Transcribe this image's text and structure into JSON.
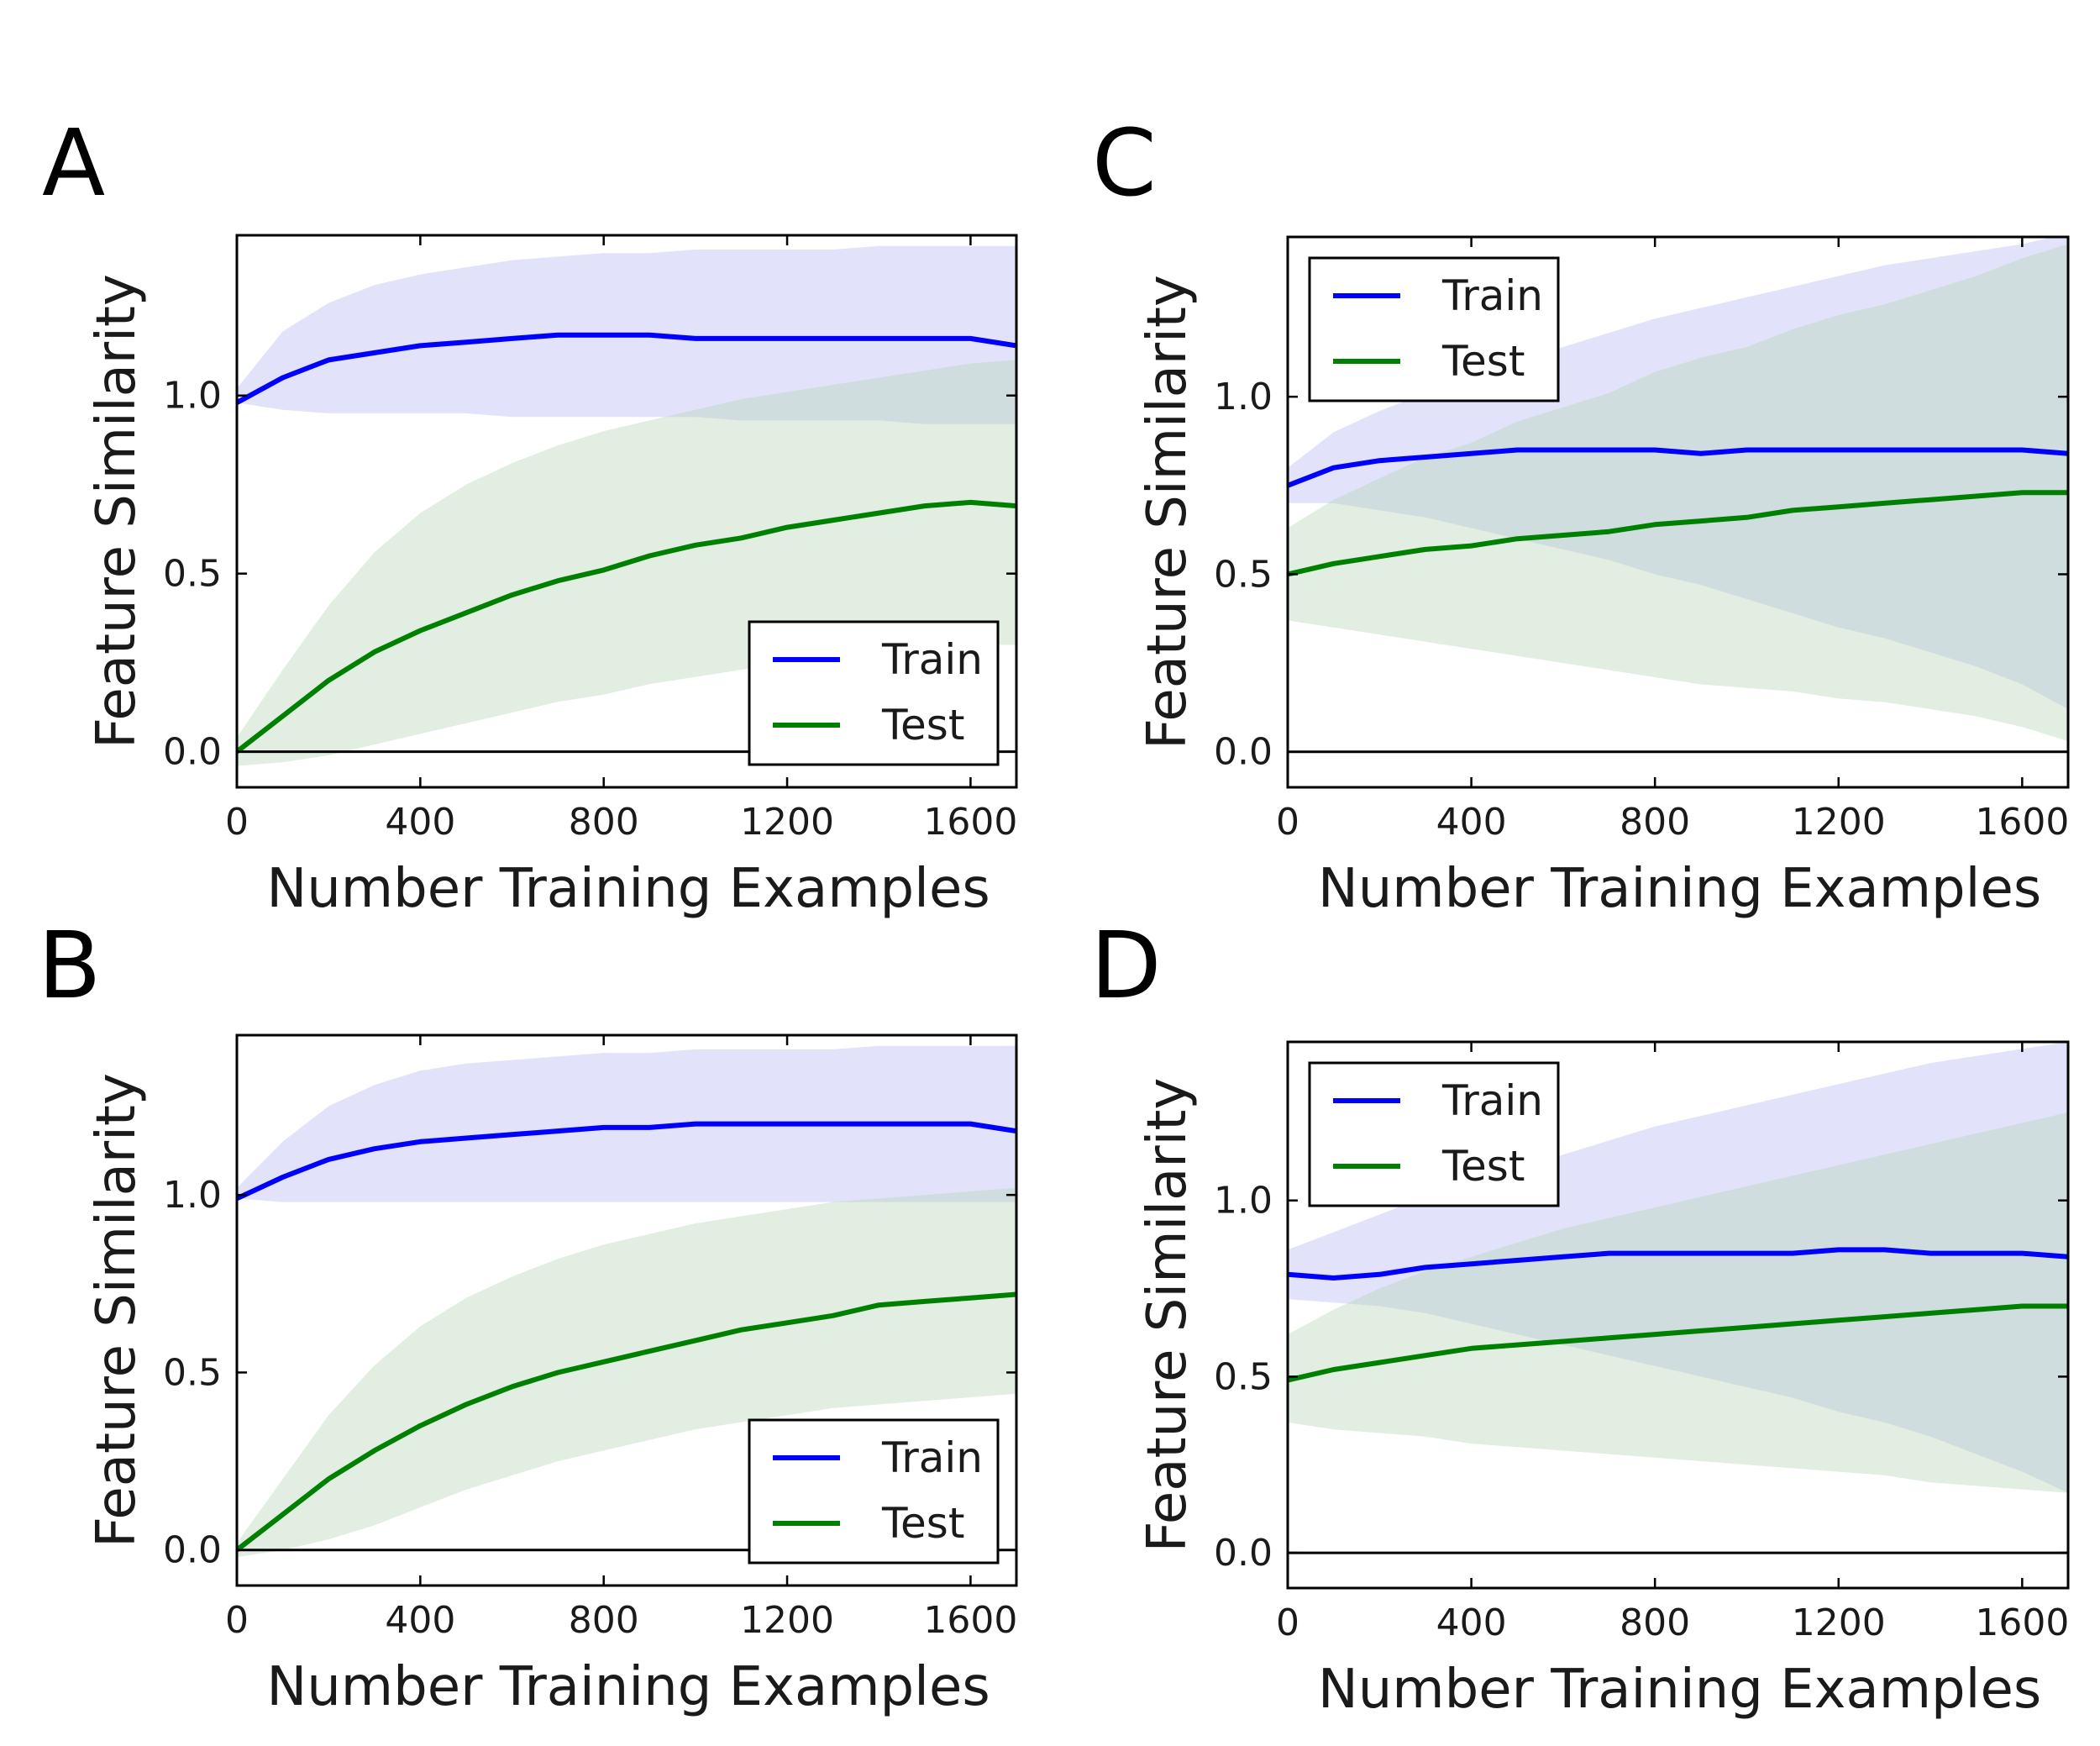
{
  "colors": {
    "train": "#0000ff",
    "test": "#008000",
    "train_band": "#b3b3f5",
    "test_band": "#b7d7b7"
  },
  "chart_data": [
    {
      "panel": "A",
      "type": "line",
      "xlabel": "Number Training Examples",
      "ylabel": "Feature Similarity",
      "xlim": [
        0,
        1700
      ],
      "ylim": [
        -0.1,
        1.45
      ],
      "xticks": [
        0,
        400,
        800,
        1200,
        1600
      ],
      "yticks": [
        0.0,
        0.5,
        1.0
      ],
      "xtick_labels": [
        "0",
        "400",
        "800",
        "1200",
        "1600"
      ],
      "ytick_labels": [
        "0.0",
        "0.5",
        "1.0"
      ],
      "legend": {
        "position": "lower-right",
        "entries": [
          "Train",
          "Test"
        ]
      },
      "x": [
        0,
        100,
        200,
        300,
        400,
        500,
        600,
        700,
        800,
        900,
        1000,
        1100,
        1200,
        1300,
        1400,
        1500,
        1600,
        1700
      ],
      "series": [
        {
          "name": "Train",
          "mean": [
            0.98,
            1.05,
            1.1,
            1.12,
            1.14,
            1.15,
            1.16,
            1.17,
            1.17,
            1.17,
            1.16,
            1.16,
            1.16,
            1.16,
            1.16,
            1.16,
            1.16,
            1.14
          ],
          "lower": [
            0.98,
            0.96,
            0.95,
            0.95,
            0.95,
            0.95,
            0.94,
            0.94,
            0.94,
            0.94,
            0.94,
            0.93,
            0.93,
            0.93,
            0.93,
            0.92,
            0.92,
            0.92
          ],
          "upper": [
            1.02,
            1.18,
            1.26,
            1.31,
            1.34,
            1.36,
            1.38,
            1.39,
            1.4,
            1.4,
            1.41,
            1.41,
            1.41,
            1.41,
            1.42,
            1.42,
            1.42,
            1.42
          ]
        },
        {
          "name": "Test",
          "mean": [
            0.0,
            0.1,
            0.2,
            0.28,
            0.34,
            0.39,
            0.44,
            0.48,
            0.51,
            0.55,
            0.58,
            0.6,
            0.63,
            0.65,
            0.67,
            0.69,
            0.7,
            0.69
          ],
          "lower": [
            -0.04,
            -0.03,
            -0.01,
            0.02,
            0.05,
            0.08,
            0.11,
            0.14,
            0.16,
            0.19,
            0.21,
            0.23,
            0.25,
            0.26,
            0.28,
            0.29,
            0.3,
            0.3
          ],
          "upper": [
            0.04,
            0.23,
            0.41,
            0.56,
            0.67,
            0.75,
            0.81,
            0.86,
            0.9,
            0.93,
            0.96,
            0.99,
            1.01,
            1.03,
            1.05,
            1.07,
            1.09,
            1.1
          ]
        }
      ]
    },
    {
      "panel": "B",
      "type": "line",
      "xlabel": "Number Training Examples",
      "ylabel": "Feature Similarity",
      "xlim": [
        0,
        1700
      ],
      "ylim": [
        -0.1,
        1.45
      ],
      "xticks": [
        0,
        400,
        800,
        1200,
        1600
      ],
      "yticks": [
        0.0,
        0.5,
        1.0
      ],
      "xtick_labels": [
        "0",
        "400",
        "800",
        "1200",
        "1600"
      ],
      "ytick_labels": [
        "0.0",
        "0.5",
        "1.0"
      ],
      "legend": {
        "position": "lower-right",
        "entries": [
          "Train",
          "Test"
        ]
      },
      "x": [
        0,
        100,
        200,
        300,
        400,
        500,
        600,
        700,
        800,
        900,
        1000,
        1100,
        1200,
        1300,
        1400,
        1500,
        1600,
        1700
      ],
      "series": [
        {
          "name": "Train",
          "mean": [
            0.99,
            1.05,
            1.1,
            1.13,
            1.15,
            1.16,
            1.17,
            1.18,
            1.19,
            1.19,
            1.2,
            1.2,
            1.2,
            1.2,
            1.2,
            1.2,
            1.2,
            1.18
          ],
          "lower": [
            0.99,
            0.98,
            0.98,
            0.98,
            0.98,
            0.98,
            0.98,
            0.98,
            0.98,
            0.98,
            0.98,
            0.98,
            0.98,
            0.98,
            0.98,
            0.98,
            0.98,
            0.98
          ],
          "upper": [
            1.02,
            1.15,
            1.25,
            1.31,
            1.35,
            1.37,
            1.38,
            1.39,
            1.4,
            1.4,
            1.41,
            1.41,
            1.41,
            1.41,
            1.42,
            1.42,
            1.42,
            1.42
          ]
        },
        {
          "name": "Test",
          "mean": [
            0.0,
            0.1,
            0.2,
            0.28,
            0.35,
            0.41,
            0.46,
            0.5,
            0.53,
            0.56,
            0.59,
            0.62,
            0.64,
            0.66,
            0.69,
            0.7,
            0.71,
            0.72
          ],
          "lower": [
            -0.02,
            0.0,
            0.03,
            0.07,
            0.12,
            0.17,
            0.21,
            0.25,
            0.28,
            0.31,
            0.34,
            0.36,
            0.38,
            0.4,
            0.41,
            0.42,
            0.43,
            0.44
          ],
          "upper": [
            0.02,
            0.2,
            0.38,
            0.52,
            0.63,
            0.71,
            0.77,
            0.82,
            0.86,
            0.89,
            0.92,
            0.94,
            0.96,
            0.98,
            0.99,
            1.0,
            1.01,
            1.02
          ]
        }
      ]
    },
    {
      "panel": "C",
      "type": "line",
      "xlabel": "Number Training Examples",
      "ylabel": "Feature Similarity",
      "xlim": [
        0,
        1700
      ],
      "ylim": [
        -0.1,
        1.45
      ],
      "xticks": [
        0,
        400,
        800,
        1200,
        1600
      ],
      "yticks": [
        0.0,
        0.5,
        1.0
      ],
      "xtick_labels": [
        "0",
        "400",
        "800",
        "1200",
        "1600"
      ],
      "ytick_labels": [
        "0.0",
        "0.5",
        "1.0"
      ],
      "legend": {
        "position": "upper-left",
        "entries": [
          "Train",
          "Test"
        ]
      },
      "x": [
        0,
        100,
        200,
        300,
        400,
        500,
        600,
        700,
        800,
        900,
        1000,
        1100,
        1200,
        1300,
        1400,
        1500,
        1600,
        1700
      ],
      "series": [
        {
          "name": "Train",
          "mean": [
            0.75,
            0.8,
            0.82,
            0.83,
            0.84,
            0.85,
            0.85,
            0.85,
            0.85,
            0.84,
            0.85,
            0.85,
            0.85,
            0.85,
            0.85,
            0.85,
            0.85,
            0.84
          ],
          "lower": [
            0.7,
            0.7,
            0.68,
            0.66,
            0.63,
            0.6,
            0.57,
            0.54,
            0.5,
            0.47,
            0.43,
            0.39,
            0.35,
            0.32,
            0.28,
            0.24,
            0.19,
            0.12
          ],
          "upper": [
            0.8,
            0.9,
            0.96,
            1.01,
            1.06,
            1.1,
            1.14,
            1.18,
            1.22,
            1.25,
            1.28,
            1.31,
            1.34,
            1.37,
            1.39,
            1.41,
            1.43,
            1.46
          ]
        },
        {
          "name": "Test",
          "mean": [
            0.5,
            0.53,
            0.55,
            0.57,
            0.58,
            0.6,
            0.61,
            0.62,
            0.64,
            0.65,
            0.66,
            0.68,
            0.69,
            0.7,
            0.71,
            0.72,
            0.73,
            0.73
          ],
          "lower": [
            0.37,
            0.35,
            0.33,
            0.31,
            0.29,
            0.27,
            0.25,
            0.23,
            0.21,
            0.19,
            0.18,
            0.17,
            0.15,
            0.14,
            0.12,
            0.1,
            0.07,
            0.03
          ],
          "upper": [
            0.63,
            0.71,
            0.77,
            0.83,
            0.87,
            0.93,
            0.97,
            1.01,
            1.07,
            1.11,
            1.14,
            1.19,
            1.23,
            1.26,
            1.3,
            1.34,
            1.39,
            1.43
          ]
        }
      ]
    },
    {
      "panel": "D",
      "type": "line",
      "xlabel": "Number Training Examples",
      "ylabel": "Feature Similarity",
      "xlim": [
        0,
        1700
      ],
      "ylim": [
        -0.1,
        1.45
      ],
      "xticks": [
        0,
        400,
        800,
        1200,
        1600
      ],
      "yticks": [
        0.0,
        0.5,
        1.0
      ],
      "xtick_labels": [
        "0",
        "400",
        "800",
        "1200",
        "1600"
      ],
      "ytick_labels": [
        "0.0",
        "0.5",
        "1.0"
      ],
      "legend": {
        "position": "upper-left",
        "entries": [
          "Train",
          "Test"
        ]
      },
      "x": [
        0,
        100,
        200,
        300,
        400,
        500,
        600,
        700,
        800,
        900,
        1000,
        1100,
        1200,
        1300,
        1400,
        1500,
        1600,
        1700
      ],
      "series": [
        {
          "name": "Train",
          "mean": [
            0.79,
            0.78,
            0.79,
            0.81,
            0.82,
            0.83,
            0.84,
            0.85,
            0.85,
            0.85,
            0.85,
            0.85,
            0.86,
            0.86,
            0.85,
            0.85,
            0.85,
            0.84
          ],
          "lower": [
            0.72,
            0.71,
            0.7,
            0.68,
            0.65,
            0.62,
            0.59,
            0.56,
            0.53,
            0.5,
            0.47,
            0.44,
            0.4,
            0.37,
            0.33,
            0.28,
            0.23,
            0.17
          ],
          "upper": [
            0.86,
            0.91,
            0.96,
            1.01,
            1.05,
            1.09,
            1.13,
            1.17,
            1.21,
            1.24,
            1.27,
            1.3,
            1.33,
            1.36,
            1.39,
            1.41,
            1.43,
            1.45
          ]
        },
        {
          "name": "Test",
          "mean": [
            0.49,
            0.52,
            0.54,
            0.56,
            0.58,
            0.59,
            0.6,
            0.61,
            0.62,
            0.63,
            0.64,
            0.65,
            0.66,
            0.67,
            0.68,
            0.69,
            0.7,
            0.7
          ],
          "lower": [
            0.37,
            0.35,
            0.34,
            0.33,
            0.31,
            0.3,
            0.29,
            0.28,
            0.27,
            0.26,
            0.25,
            0.24,
            0.23,
            0.22,
            0.2,
            0.19,
            0.18,
            0.17
          ],
          "upper": [
            0.62,
            0.69,
            0.75,
            0.8,
            0.84,
            0.88,
            0.92,
            0.95,
            0.98,
            1.01,
            1.04,
            1.07,
            1.1,
            1.13,
            1.16,
            1.19,
            1.22,
            1.25
          ]
        }
      ]
    }
  ]
}
